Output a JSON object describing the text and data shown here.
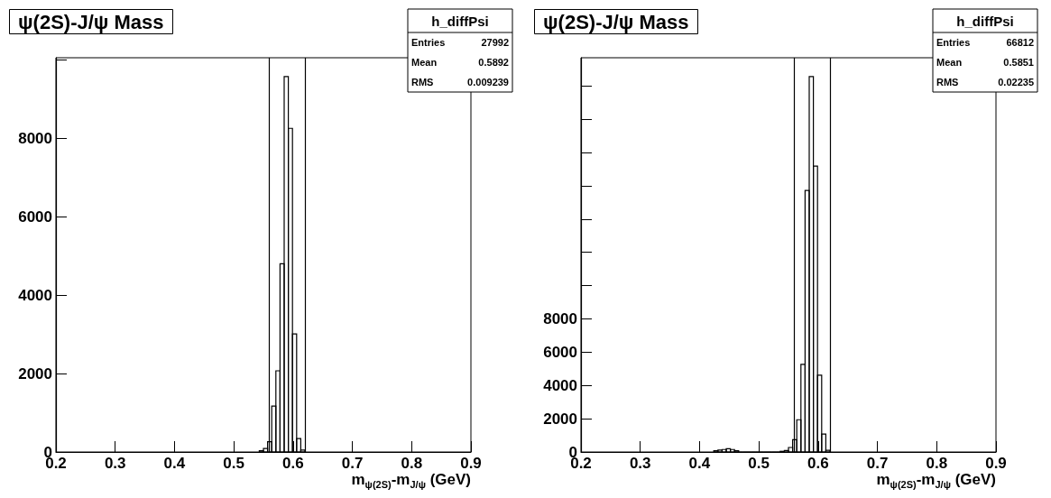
{
  "chart_data": [
    {
      "type": "histogram",
      "title": "ψ(2S)-J/ψ Mass",
      "xlabel": "m$_{ψ(2S)}$-m$_{J/ψ}$ (GeV)",
      "annotations": [
        "h_diffPsi",
        "Entries",
        "27992",
        "Mean",
        "0.5892",
        "RMS",
        "0.009239"
      ],
      "bins": [
        0.543,
        0.55,
        0.557,
        0.564,
        0.571,
        0.578,
        0.585,
        0.592,
        0.599,
        0.606,
        0.613,
        0.62
      ],
      "values": [
        30,
        90,
        260,
        1170,
        2070,
        4800,
        9570,
        8250,
        3010,
        340,
        50
      ],
      "color": "#000000",
      "xlim": [
        0.2,
        0.9
      ],
      "xticks": [
        0.2,
        0.3,
        0.4,
        0.5,
        0.6,
        0.7,
        0.8,
        0.9
      ],
      "ylim": [
        0,
        10050
      ],
      "yticks": [
        0,
        2000,
        4000,
        6000,
        8000,
        {
          "value": 10000,
          "label": null
        }
      ],
      "ref_lines": [
        {
          "axis": "x",
          "value": 0.557,
          "color": "#000000"
        },
        {
          "axis": "x",
          "value": 0.62,
          "color": "#000000"
        }
      ]
    },
    {
      "type": "histogram",
      "title": "ψ(2S)-J/ψ Mass",
      "xlabel": "m$_{ψ(2S)}$-m$_{J/ψ}$ (GeV)",
      "annotations": [
        "h_diffPsi",
        "Entries",
        "66812",
        "Mean",
        "0.5851",
        "RMS",
        "0.02235"
      ],
      "bins": [
        0.424,
        0.431,
        0.438,
        0.445,
        0.452,
        0.459,
        0.466,
        0.473,
        0.48,
        0.487,
        0.494,
        0.501,
        0.508,
        0.515,
        0.522,
        0.529,
        0.536,
        0.543,
        0.55,
        0.557,
        0.564,
        0.571,
        0.578,
        0.585,
        0.592,
        0.599,
        0.606,
        0.613,
        0.62
      ],
      "values": [
        70,
        110,
        150,
        200,
        150,
        70,
        0,
        0,
        0,
        0,
        0,
        0,
        0,
        0,
        0,
        0,
        40,
        90,
        270,
        740,
        1940,
        5270,
        15720,
        22570,
        17180,
        4620,
        1080,
        100
      ],
      "color": "#000000",
      "xlim": [
        0.2,
        0.9
      ],
      "xticks": [
        0.2,
        0.3,
        0.4,
        0.5,
        0.6,
        0.7,
        0.8,
        0.9
      ],
      "ylim": [
        0,
        23700
      ],
      "yticks": [
        0,
        2000,
        4000,
        6000,
        8000,
        {
          "value": 10000,
          "label": null
        },
        {
          "value": 12000,
          "label": null
        },
        {
          "value": 14000,
          "label": null
        },
        {
          "value": 16000,
          "label": null
        },
        {
          "value": 18000,
          "label": null
        },
        {
          "value": 20000,
          "label": null
        },
        {
          "value": 22000,
          "label": null
        }
      ],
      "ref_lines": [
        {
          "axis": "x",
          "value": 0.557,
          "color": "#000000"
        },
        {
          "axis": "x",
          "value": 0.62,
          "color": "#000000"
        }
      ]
    }
  ]
}
